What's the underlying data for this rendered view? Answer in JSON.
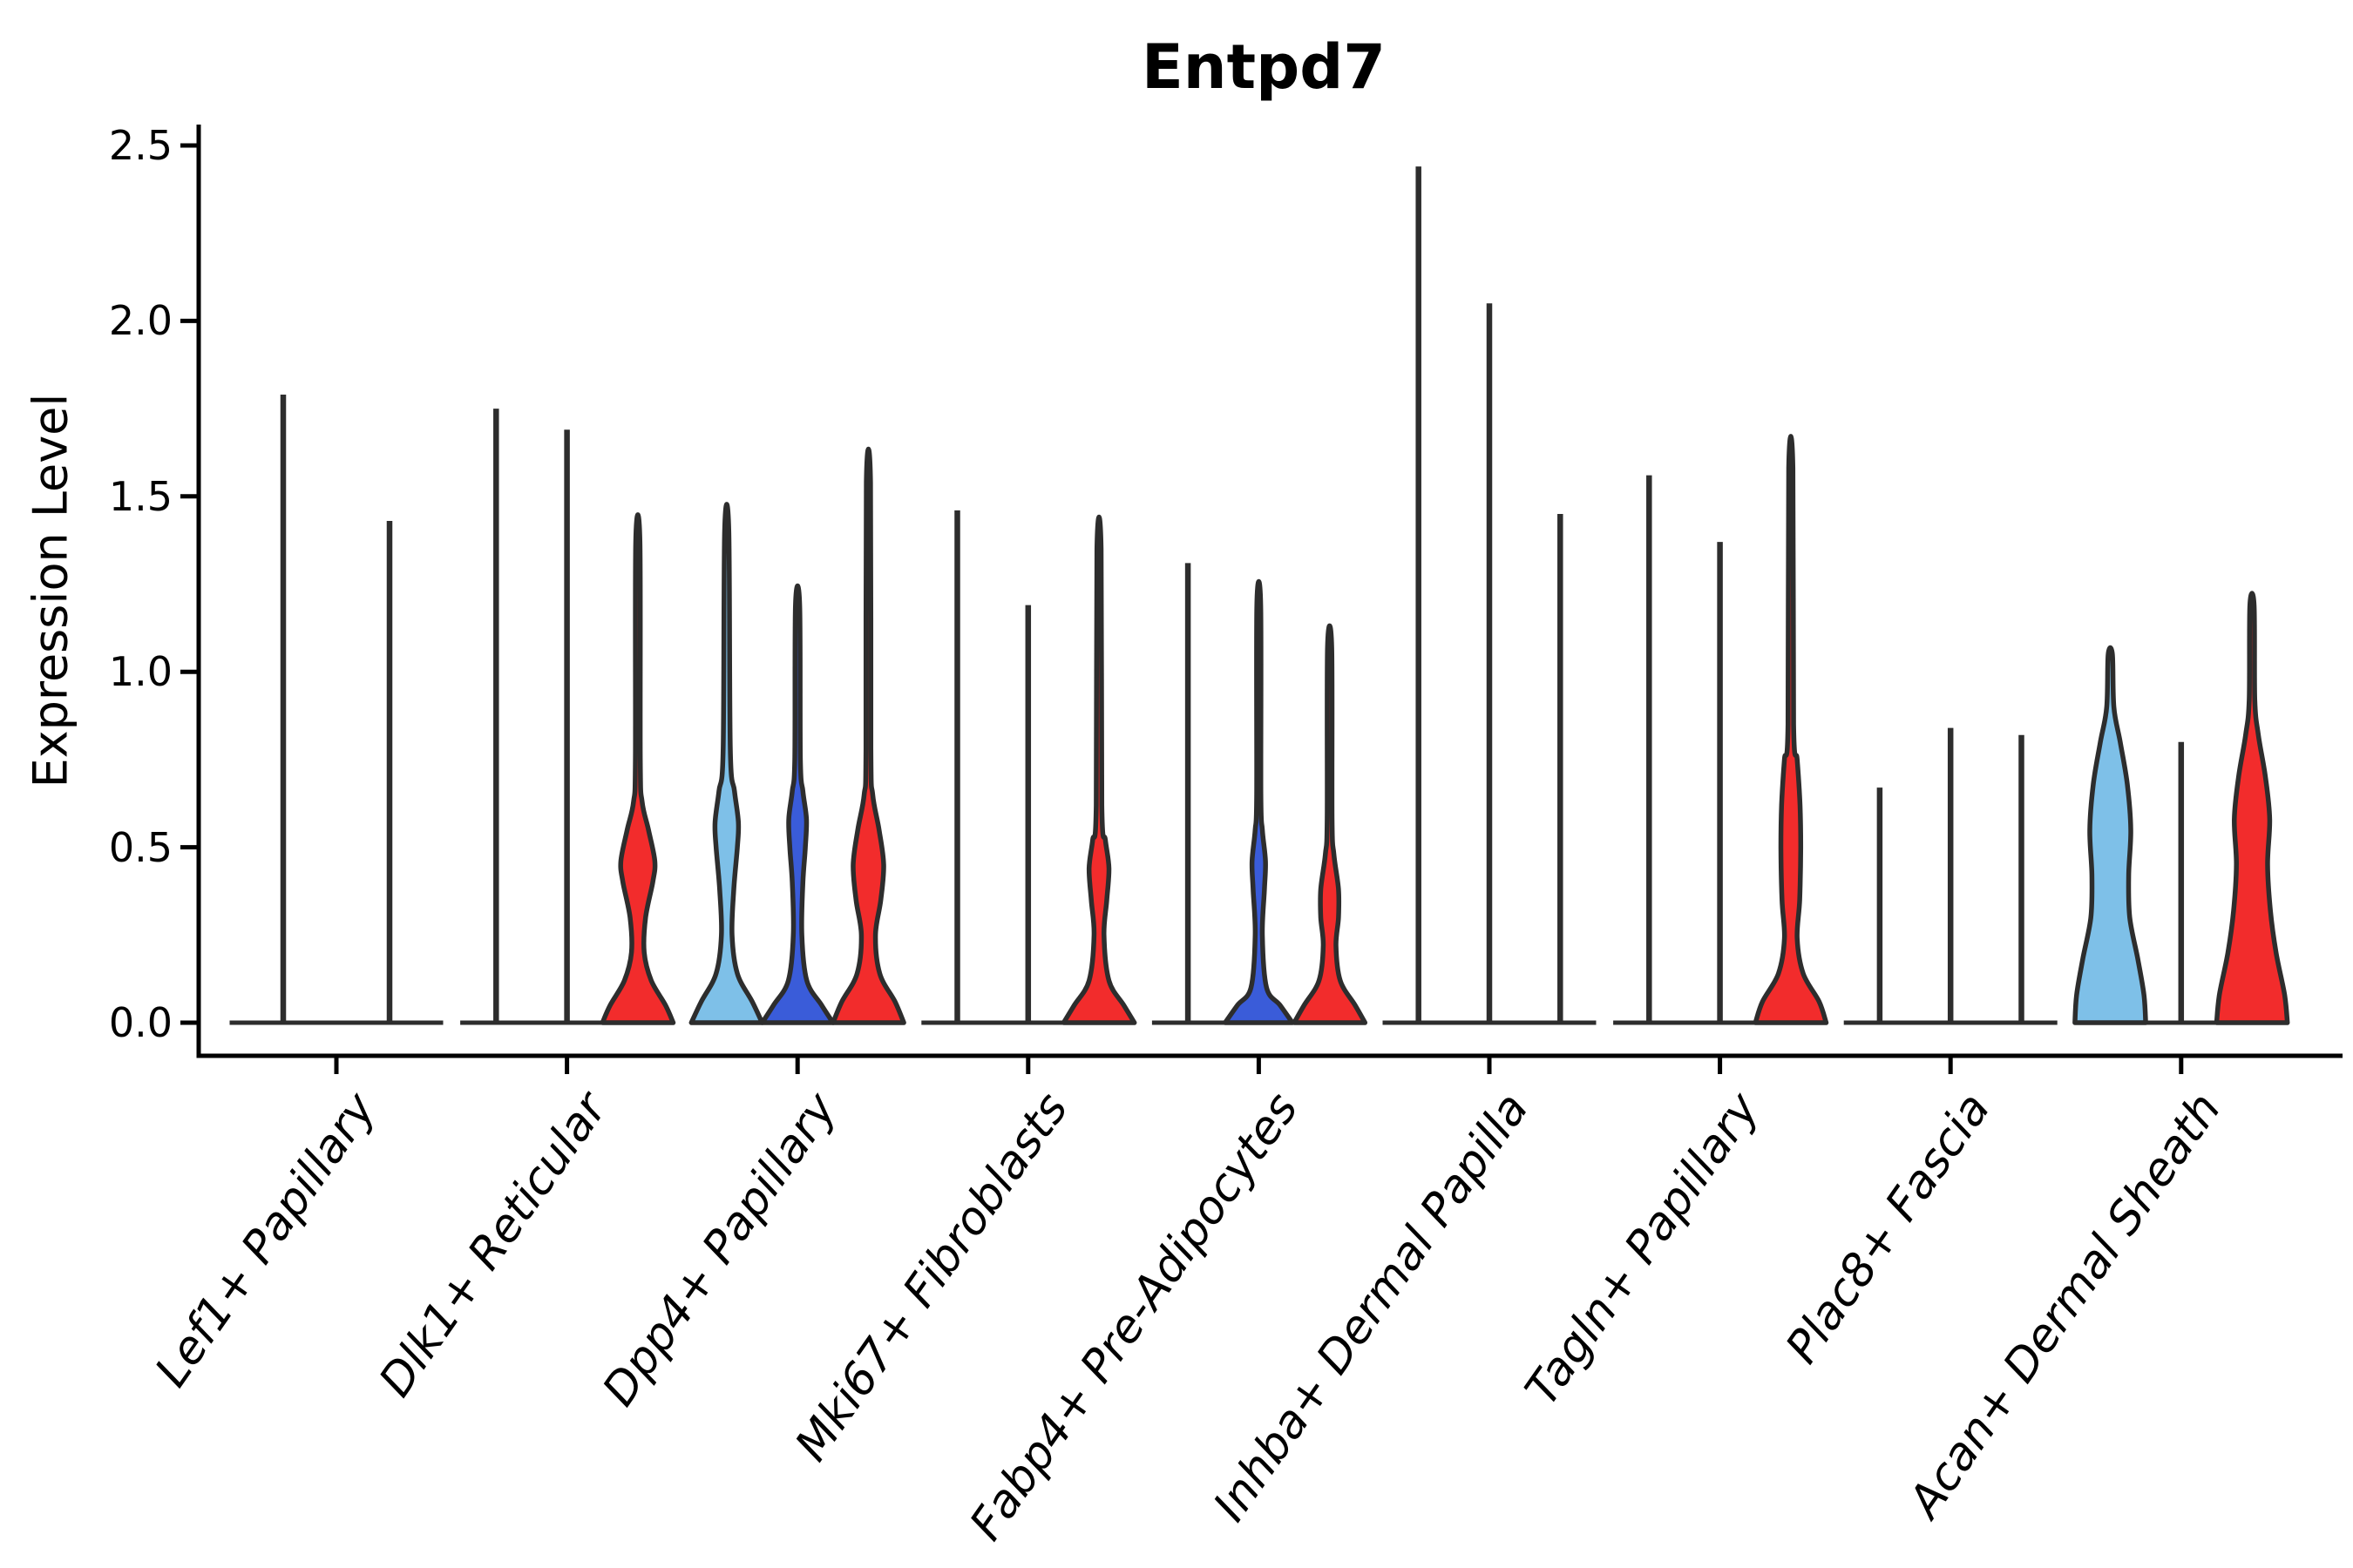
{
  "chart_data": {
    "type": "violin",
    "title": "Entpd7",
    "ylabel": "Expression Level",
    "xlabel": "",
    "yticks": [
      "0.0",
      "0.5",
      "1.0",
      "1.5",
      "2.0",
      "2.5"
    ],
    "ytick_values": [
      0.0,
      0.5,
      1.0,
      1.5,
      2.0,
      2.5
    ],
    "ylim": [
      -0.09,
      2.56
    ],
    "grid": "off",
    "legend": "none",
    "colors": {
      "lightblue": "#7EC0E8",
      "darkblue": "#3A5CD9",
      "red": "#F22C2C",
      "outline": "#2D2D2D",
      "axis": "#000000"
    },
    "groups": [
      {
        "label": "Lef1+ Papillary",
        "violins": [
          {
            "fill": "plain",
            "max": 1.79
          },
          {
            "fill": "plain",
            "max": 1.43
          }
        ]
      },
      {
        "label": "Dlk1+ Reticular",
        "violins": [
          {
            "fill": "plain",
            "max": 1.75
          },
          {
            "fill": "plain",
            "max": 1.69
          },
          {
            "fill": "red",
            "max": 1.37,
            "profile": [
              [
                0,
                1.0
              ],
              [
                0.05,
                0.78
              ],
              [
                0.12,
                0.38
              ],
              [
                0.2,
                0.18
              ],
              [
                0.3,
                0.22
              ],
              [
                0.4,
                0.42
              ],
              [
                0.46,
                0.48
              ],
              [
                0.55,
                0.3
              ],
              [
                0.63,
                0.12
              ],
              [
                0.75,
                0.07
              ],
              [
                1.37,
                0.06
              ]
            ]
          }
        ]
      },
      {
        "label": "Dpp4+ Papillary",
        "violins": [
          {
            "fill": "lightblue",
            "max": 1.4,
            "profile": [
              [
                0,
                1.0
              ],
              [
                0.06,
                0.72
              ],
              [
                0.14,
                0.3
              ],
              [
                0.25,
                0.15
              ],
              [
                0.38,
                0.2
              ],
              [
                0.5,
                0.3
              ],
              [
                0.57,
                0.33
              ],
              [
                0.66,
                0.22
              ],
              [
                0.78,
                0.1
              ],
              [
                1.4,
                0.06
              ]
            ]
          },
          {
            "fill": "darkblue",
            "max": 1.19,
            "profile": [
              [
                0,
                1.0
              ],
              [
                0.05,
                0.68
              ],
              [
                0.12,
                0.26
              ],
              [
                0.25,
                0.12
              ],
              [
                0.4,
                0.15
              ],
              [
                0.5,
                0.22
              ],
              [
                0.58,
                0.25
              ],
              [
                0.66,
                0.15
              ],
              [
                0.75,
                0.08
              ],
              [
                1.19,
                0.06
              ]
            ]
          },
          {
            "fill": "red",
            "max": 1.54,
            "profile": [
              [
                0,
                1.0
              ],
              [
                0.06,
                0.75
              ],
              [
                0.14,
                0.32
              ],
              [
                0.25,
                0.2
              ],
              [
                0.35,
                0.35
              ],
              [
                0.45,
                0.43
              ],
              [
                0.55,
                0.3
              ],
              [
                0.65,
                0.12
              ],
              [
                0.78,
                0.07
              ],
              [
                1.54,
                0.06
              ]
            ]
          }
        ]
      },
      {
        "label": "Mki67+ Fibroblasts",
        "violins": [
          {
            "fill": "plain",
            "max": 1.46
          },
          {
            "fill": "plain",
            "max": 1.19
          },
          {
            "fill": "red",
            "max": 1.35,
            "profile": [
              [
                0,
                1.0
              ],
              [
                0.05,
                0.7
              ],
              [
                0.12,
                0.28
              ],
              [
                0.25,
                0.14
              ],
              [
                0.35,
                0.22
              ],
              [
                0.44,
                0.28
              ],
              [
                0.52,
                0.18
              ],
              [
                0.62,
                0.08
              ],
              [
                1.35,
                0.06
              ]
            ]
          }
        ]
      },
      {
        "label": "Fabp4+ Pre-Adipocytes",
        "violins": [
          {
            "fill": "plain",
            "max": 1.31
          },
          {
            "fill": "darkblue",
            "max": 1.19,
            "profile": [
              [
                0,
                0.95
              ],
              [
                0.05,
                0.6
              ],
              [
                0.1,
                0.22
              ],
              [
                0.25,
                0.1
              ],
              [
                0.38,
                0.16
              ],
              [
                0.46,
                0.19
              ],
              [
                0.55,
                0.1
              ],
              [
                0.65,
                0.06
              ],
              [
                1.19,
                0.055
              ]
            ]
          },
          {
            "fill": "red",
            "max": 1.07,
            "profile": [
              [
                0,
                1.0
              ],
              [
                0.05,
                0.72
              ],
              [
                0.12,
                0.3
              ],
              [
                0.22,
                0.18
              ],
              [
                0.3,
                0.25
              ],
              [
                0.38,
                0.25
              ],
              [
                0.48,
                0.12
              ],
              [
                0.58,
                0.07
              ],
              [
                1.07,
                0.06
              ]
            ]
          }
        ]
      },
      {
        "label": "Inhba+ Dermal Papilla",
        "violins": [
          {
            "fill": "plain",
            "max": 2.44
          },
          {
            "fill": "plain",
            "max": 2.05
          },
          {
            "fill": "plain",
            "max": 1.45
          }
        ]
      },
      {
        "label": "Tagln+ Papillary",
        "violins": [
          {
            "fill": "plain",
            "max": 1.56
          },
          {
            "fill": "plain",
            "max": 1.37
          },
          {
            "fill": "red",
            "max": 1.58,
            "profile": [
              [
                0,
                1.0
              ],
              [
                0.06,
                0.8
              ],
              [
                0.14,
                0.35
              ],
              [
                0.24,
                0.18
              ],
              [
                0.35,
                0.25
              ],
              [
                0.5,
                0.28
              ],
              [
                0.62,
                0.26
              ],
              [
                0.75,
                0.18
              ],
              [
                0.85,
                0.08
              ],
              [
                1.58,
                0.06
              ]
            ]
          }
        ]
      },
      {
        "label": "Plac8+ Fascia",
        "violins": [
          {
            "fill": "plain",
            "max": 0.67
          },
          {
            "fill": "plain",
            "max": 0.84
          },
          {
            "fill": "plain",
            "max": 0.82
          }
        ]
      },
      {
        "label": "Acan+ Dermal Sheath",
        "violins": [
          {
            "fill": "lightblue",
            "max": 1.05,
            "profile": [
              [
                0,
                1.0
              ],
              [
                0.08,
                0.95
              ],
              [
                0.18,
                0.78
              ],
              [
                0.3,
                0.55
              ],
              [
                0.42,
                0.52
              ],
              [
                0.55,
                0.58
              ],
              [
                0.68,
                0.48
              ],
              [
                0.8,
                0.28
              ],
              [
                0.9,
                0.1
              ],
              [
                1.05,
                0.06
              ]
            ]
          },
          {
            "fill": "plain",
            "max": 0.8
          },
          {
            "fill": "red",
            "max": 1.19,
            "profile": [
              [
                0,
                1.0
              ],
              [
                0.08,
                0.92
              ],
              [
                0.2,
                0.68
              ],
              [
                0.32,
                0.52
              ],
              [
                0.45,
                0.44
              ],
              [
                0.58,
                0.5
              ],
              [
                0.7,
                0.38
              ],
              [
                0.82,
                0.18
              ],
              [
                0.92,
                0.08
              ],
              [
                1.19,
                0.06
              ]
            ]
          }
        ]
      }
    ]
  }
}
